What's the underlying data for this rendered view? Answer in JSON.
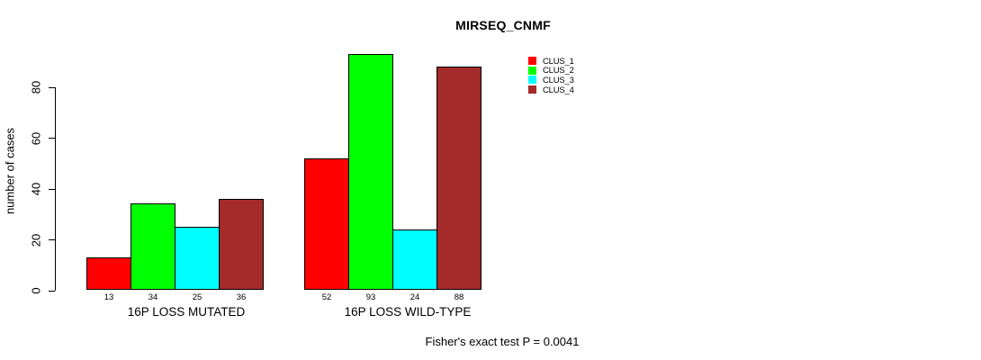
{
  "chart_data": {
    "type": "bar",
    "title": "MIRSEQ_CNMF",
    "xlabel": "",
    "ylabel": "number of cases",
    "categories": [
      "16P LOSS MUTATED",
      "16P LOSS WILD-TYPE"
    ],
    "series": [
      {
        "name": "CLUS_1",
        "color": "#FF0000",
        "values": [
          13,
          52
        ]
      },
      {
        "name": "CLUS_2",
        "color": "#00FF00",
        "values": [
          34,
          93
        ]
      },
      {
        "name": "CLUS_3",
        "color": "#00FFFF",
        "values": [
          25,
          24
        ]
      },
      {
        "name": "CLUS_4",
        "color": "#A52A2A",
        "values": [
          36,
          88
        ]
      }
    ],
    "bar_value_labels": [
      [
        13,
        34,
        25,
        36
      ],
      [
        52,
        93,
        24,
        88
      ]
    ],
    "yticks": [
      0,
      20,
      40,
      60,
      80
    ],
    "ylim": [
      0,
      93
    ],
    "grid": false,
    "legend_position": "top-right-inside",
    "annotation": "Fisher's exact test P = 0.0041",
    "colors": {
      "axis": "#000000",
      "text": "#000000",
      "background": "#FFFFFF",
      "bar_border": "#000000"
    }
  }
}
